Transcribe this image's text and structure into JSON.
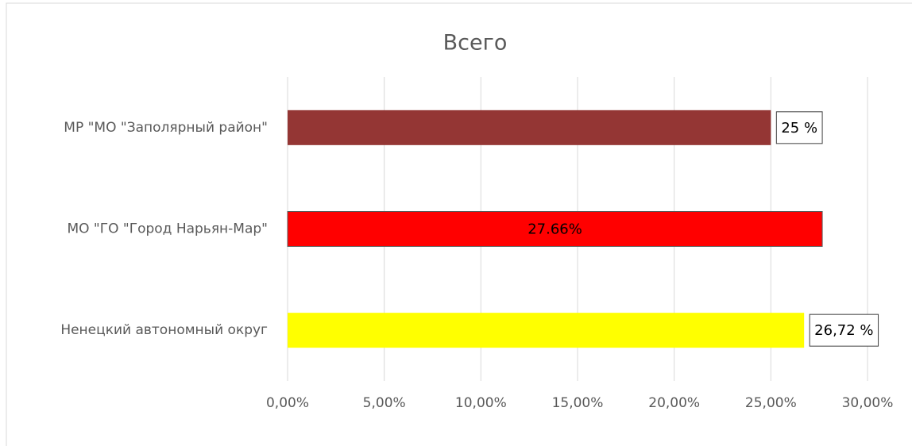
{
  "chart_data": {
    "type": "barh",
    "title": "Всего",
    "categories": [
      "МР \"МО \"Заполярный район\"",
      "МО \"ГО \"Город Нарьян-Мар\"",
      "Ненецкий автономный округ"
    ],
    "values": [
      25,
      27.66,
      26.72
    ],
    "value_labels": [
      "25 %",
      "27.66%",
      "26,72 %"
    ],
    "colors": [
      "#943634",
      "#ff0000",
      "#ffff00"
    ],
    "label_positions": [
      "outside",
      "inside",
      "outside"
    ],
    "xlim": [
      0,
      30
    ],
    "xticks": [
      {
        "value": 0,
        "label": "0,00%"
      },
      {
        "value": 5,
        "label": "5,00%"
      },
      {
        "value": 10,
        "label": "10,00%"
      },
      {
        "value": 15,
        "label": "15,00%"
      },
      {
        "value": 20,
        "label": "20,00%"
      },
      {
        "value": 25,
        "label": "25,00%"
      },
      {
        "value": 30,
        "label": "30,00%"
      }
    ],
    "grid": true
  }
}
